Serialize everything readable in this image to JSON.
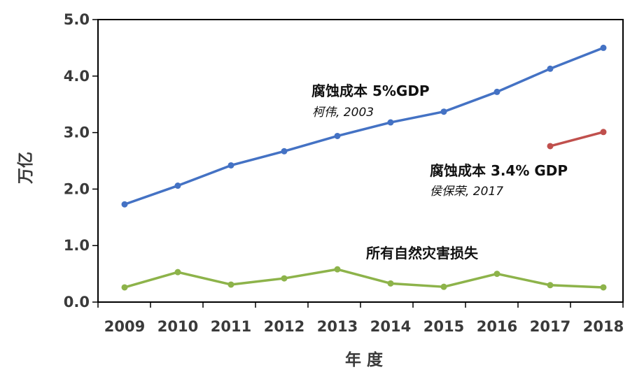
{
  "chart_data": {
    "type": "line",
    "ylabel": "万亿",
    "xlabel": "年 度",
    "x": [
      2009,
      2010,
      2011,
      2012,
      2013,
      2014,
      2015,
      2016,
      2017,
      2018
    ],
    "x_tick_labels": [
      "2009",
      "2010",
      "2011",
      "2012",
      "2013",
      "2014",
      "2015",
      "2016",
      "2017",
      "2018"
    ],
    "y_tick_labels": [
      "0.0",
      "1.0",
      "2.0",
      "3.0",
      "4.0",
      "5.0"
    ],
    "ylim": [
      0,
      5
    ],
    "grid": false,
    "series": [
      {
        "name": "",
        "color": "#4472c4",
        "x": [
          2009,
          2010,
          2011,
          2012,
          2013,
          2014,
          2015,
          2016,
          2017,
          2018
        ],
        "values": [
          1.73,
          2.06,
          2.42,
          2.67,
          2.94,
          3.18,
          3.37,
          3.72,
          4.13,
          4.5
        ]
      },
      {
        "name": "",
        "color": "#c0504d",
        "x": [
          2017,
          2018
        ],
        "values": [
          2.76,
          3.01
        ]
      },
      {
        "name": "",
        "color": "#8db34a",
        "x": [
          2009,
          2010,
          2011,
          2012,
          2013,
          2014,
          2015,
          2016,
          2017,
          2018
        ],
        "values": [
          0.26,
          0.53,
          0.31,
          0.42,
          0.58,
          0.33,
          0.27,
          0.5,
          0.3,
          0.26
        ]
      }
    ],
    "annotations": [
      {
        "main": "腐蚀成本 5%GDP",
        "sub": "柯伟, 2003"
      },
      {
        "main": "腐蚀成本 3.4% GDP",
        "sub": "侯保荣, 2017"
      },
      {
        "main": "所有自然灾害损失"
      }
    ]
  }
}
